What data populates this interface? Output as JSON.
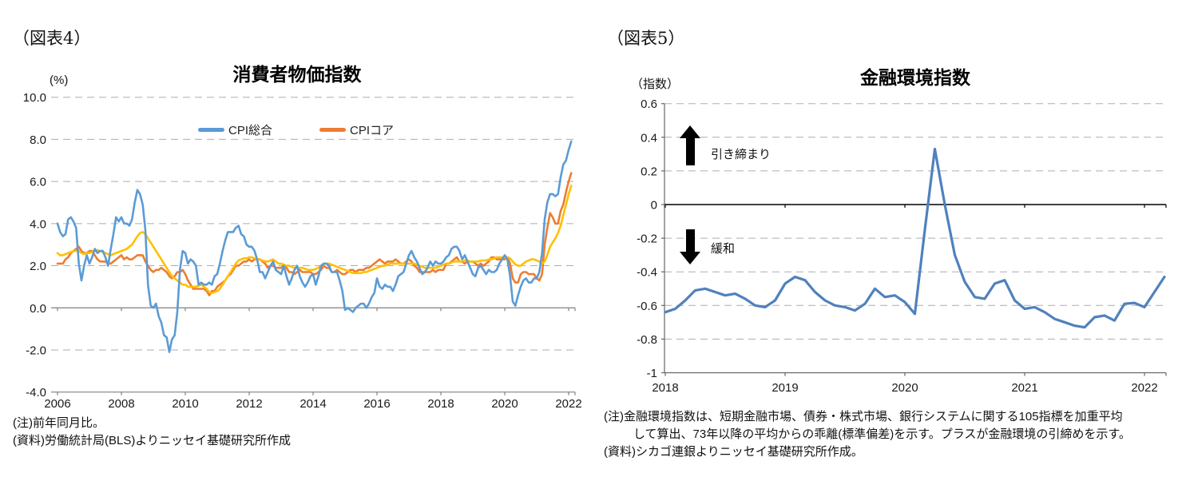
{
  "figures": [
    {
      "fig_label": "（図表4）",
      "title": "消費者物価指数",
      "axis_unit": "(%)",
      "legend": [
        {
          "label": "CPI総合",
          "color": "#5B9BD5"
        },
        {
          "label": "CPIコア",
          "color": "#ED7D31"
        }
      ],
      "notes": [
        "(注)前年同月比。",
        "(資料)労働統計局(BLS)よりニッセイ基礎研究所作成"
      ]
    },
    {
      "fig_label": "（図表5）",
      "title": "金融環境指数",
      "axis_unit": "（指数）",
      "annotations": {
        "tighten": "引き締まり",
        "ease": "緩和"
      },
      "notes": [
        "(注)金融環境指数は、短期金融市場、債券・株式市場、銀行システムに関する105指標を加重平均",
        "して算出、73年以降の平均からの乖離(標準偏差)を示す。プラスが金融環境の引締めを示す。",
        "(資料)シカゴ連銀よりニッセイ基礎研究所作成。"
      ]
    }
  ],
  "chart_data": [
    {
      "type": "line",
      "title": "消費者物価指数",
      "ylabel": "(%)",
      "ylim": [
        -4,
        10
      ],
      "grid": true,
      "legend_position": "top-center",
      "yticks": [
        "10.0",
        "8.0",
        "6.0",
        "4.0",
        "2.0",
        "0.0",
        "-2.0",
        "-4.0"
      ],
      "xticks": [
        2006,
        2008,
        2010,
        2012,
        2014,
        2016,
        2018,
        2020,
        2022
      ],
      "x_start_year": 2006,
      "x_step": "monthly",
      "x_end": "2022-02",
      "series": [
        {
          "name": "CPIコア",
          "color": "#ED7D31",
          "in_legend": true,
          "values": [
            2.1,
            2.1,
            2.1,
            2.3,
            2.4,
            2.6,
            2.7,
            2.8,
            2.9,
            2.7,
            2.6,
            2.6,
            2.7,
            2.7,
            2.5,
            2.3,
            2.2,
            2.2,
            2.2,
            2.1,
            2.1,
            2.2,
            2.3,
            2.4,
            2.5,
            2.3,
            2.4,
            2.3,
            2.3,
            2.4,
            2.5,
            2.5,
            2.5,
            2.2,
            2.0,
            1.8,
            1.7,
            1.8,
            1.8,
            1.9,
            1.8,
            1.7,
            1.5,
            1.4,
            1.5,
            1.7,
            1.7,
            1.8,
            1.6,
            1.3,
            1.1,
            0.9,
            0.9,
            0.9,
            0.9,
            0.9,
            0.8,
            0.6,
            0.8,
            0.8,
            1.0,
            1.1,
            1.2,
            1.3,
            1.5,
            1.6,
            1.8,
            2.0,
            2.0,
            2.1,
            2.2,
            2.2,
            2.3,
            2.2,
            2.3,
            2.3,
            2.3,
            2.2,
            2.1,
            1.9,
            2.0,
            2.0,
            1.9,
            1.9,
            1.9,
            2.0,
            1.9,
            1.7,
            1.7,
            1.6,
            1.7,
            1.8,
            1.7,
            1.7,
            1.7,
            1.7,
            1.6,
            1.6,
            1.7,
            1.8,
            2.0,
            1.9,
            1.9,
            1.7,
            1.7,
            1.8,
            1.7,
            1.6,
            1.6,
            1.7,
            1.8,
            1.8,
            1.7,
            1.8,
            1.8,
            1.8,
            1.9,
            1.9,
            2.0,
            2.1,
            2.2,
            2.3,
            2.2,
            2.1,
            2.2,
            2.2,
            2.2,
            2.3,
            2.2,
            2.1,
            2.1,
            2.2,
            2.3,
            2.2,
            2.0,
            1.9,
            1.7,
            1.7,
            1.7,
            1.7,
            1.7,
            1.8,
            1.7,
            1.8,
            1.8,
            1.8,
            2.1,
            2.1,
            2.2,
            2.3,
            2.4,
            2.2,
            2.2,
            2.1,
            2.2,
            2.2,
            2.2,
            2.1,
            2.0,
            2.1,
            2.0,
            2.1,
            2.2,
            2.4,
            2.4,
            2.3,
            2.3,
            2.3,
            2.3,
            2.4,
            2.1,
            1.4,
            1.2,
            1.2,
            1.6,
            1.7,
            1.7,
            1.6,
            1.6,
            1.6,
            1.4,
            1.3,
            1.6,
            3.0,
            3.8,
            4.5,
            4.3,
            4.0,
            4.0,
            4.6,
            4.9,
            5.5,
            6.0,
            6.4
          ]
        },
        {
          "name": "",
          "color": "#FFC000",
          "in_legend": false,
          "values": [
            2.6,
            2.5,
            2.5,
            2.55,
            2.6,
            2.65,
            2.7,
            2.7,
            2.7,
            2.6,
            2.55,
            2.6,
            2.6,
            2.65,
            2.7,
            2.75,
            2.7,
            2.65,
            2.6,
            2.55,
            2.5,
            2.55,
            2.6,
            2.65,
            2.7,
            2.75,
            2.8,
            2.9,
            3.0,
            3.2,
            3.4,
            3.55,
            3.6,
            3.5,
            3.3,
            3.1,
            2.9,
            2.7,
            2.5,
            2.3,
            2.1,
            1.9,
            1.7,
            1.5,
            1.4,
            1.3,
            1.2,
            1.1,
            1.1,
            1.0,
            1.0,
            1.0,
            1.0,
            1.05,
            1.1,
            1.0,
            0.9,
            0.75,
            0.7,
            0.75,
            0.8,
            0.9,
            1.1,
            1.3,
            1.5,
            1.7,
            1.9,
            2.1,
            2.25,
            2.3,
            2.35,
            2.35,
            2.4,
            2.4,
            2.35,
            2.3,
            2.3,
            2.25,
            2.2,
            2.2,
            2.25,
            2.3,
            2.2,
            2.1,
            2.1,
            2.05,
            2.0,
            2.0,
            1.95,
            1.9,
            1.9,
            1.9,
            1.9,
            1.85,
            1.8,
            1.8,
            1.8,
            1.85,
            1.9,
            2.0,
            2.1,
            2.1,
            2.1,
            2.05,
            2.0,
            1.95,
            1.9,
            1.85,
            1.8,
            1.75,
            1.7,
            1.65,
            1.65,
            1.65,
            1.65,
            1.7,
            1.7,
            1.75,
            1.8,
            1.85,
            1.9,
            1.95,
            2.0,
            2.0,
            2.05,
            2.1,
            2.1,
            2.1,
            2.1,
            2.1,
            2.1,
            2.1,
            2.1,
            2.1,
            2.1,
            2.05,
            2.0,
            1.95,
            1.9,
            1.9,
            1.9,
            1.9,
            1.9,
            1.95,
            2.0,
            2.05,
            2.1,
            2.1,
            2.15,
            2.2,
            2.2,
            2.2,
            2.2,
            2.25,
            2.25,
            2.2,
            2.2,
            2.2,
            2.2,
            2.25,
            2.25,
            2.25,
            2.3,
            2.3,
            2.35,
            2.4,
            2.4,
            2.4,
            2.4,
            2.4,
            2.35,
            2.2,
            2.05,
            2.0,
            2.0,
            2.1,
            2.2,
            2.25,
            2.3,
            2.3,
            2.25,
            2.2,
            2.1,
            2.2,
            2.5,
            2.9,
            3.1,
            3.3,
            3.55,
            3.9,
            4.4,
            4.9,
            5.4,
            5.8
          ]
        },
        {
          "name": "CPI総合",
          "color": "#5B9BD5",
          "in_legend": true,
          "values": [
            4.0,
            3.6,
            3.4,
            3.5,
            4.2,
            4.3,
            4.1,
            3.8,
            2.1,
            1.3,
            2.0,
            2.5,
            2.1,
            2.4,
            2.8,
            2.6,
            2.7,
            2.7,
            2.4,
            2.0,
            2.8,
            3.5,
            4.3,
            4.1,
            4.3,
            4.0,
            4.0,
            3.9,
            4.2,
            5.0,
            5.6,
            5.4,
            4.9,
            3.7,
            1.1,
            0.1,
            0.0,
            0.2,
            -0.4,
            -0.7,
            -1.3,
            -1.4,
            -2.1,
            -1.5,
            -1.3,
            -0.2,
            1.8,
            2.7,
            2.6,
            2.1,
            2.3,
            2.2,
            2.0,
            1.1,
            1.2,
            1.1,
            1.1,
            1.2,
            1.1,
            1.5,
            1.6,
            2.1,
            2.7,
            3.2,
            3.6,
            3.6,
            3.6,
            3.8,
            3.9,
            3.5,
            3.4,
            3.0,
            2.9,
            2.9,
            2.7,
            2.3,
            1.7,
            1.7,
            1.4,
            1.7,
            2.0,
            2.2,
            1.8,
            1.7,
            1.6,
            2.0,
            1.5,
            1.1,
            1.4,
            1.8,
            2.0,
            1.5,
            1.2,
            1.0,
            1.2,
            1.5,
            1.6,
            1.1,
            1.5,
            2.0,
            2.1,
            2.1,
            2.0,
            1.7,
            1.7,
            1.7,
            1.3,
            0.8,
            -0.1,
            0.0,
            -0.1,
            -0.2,
            0.0,
            0.1,
            0.2,
            0.2,
            0.0,
            0.2,
            0.5,
            0.7,
            1.4,
            1.0,
            0.9,
            1.1,
            1.0,
            1.0,
            0.8,
            1.1,
            1.5,
            1.6,
            1.7,
            2.1,
            2.5,
            2.7,
            2.4,
            2.2,
            1.9,
            1.6,
            1.7,
            1.9,
            2.2,
            2.0,
            2.2,
            2.1,
            2.1,
            2.2,
            2.4,
            2.5,
            2.8,
            2.9,
            2.9,
            2.7,
            2.3,
            2.5,
            2.2,
            1.9,
            1.6,
            1.5,
            1.9,
            2.0,
            1.8,
            1.6,
            1.8,
            1.7,
            1.7,
            1.8,
            2.1,
            2.3,
            2.5,
            2.3,
            1.5,
            0.3,
            0.1,
            0.6,
            1.0,
            1.3,
            1.4,
            1.2,
            1.2,
            1.4,
            1.4,
            1.7,
            2.6,
            4.2,
            5.0,
            5.4,
            5.4,
            5.3,
            5.4,
            6.2,
            6.8,
            7.0,
            7.5,
            7.9
          ]
        }
      ]
    },
    {
      "type": "line",
      "title": "金融環境指数",
      "ylabel": "（指数）",
      "ylim": [
        -1,
        0.6
      ],
      "grid": true,
      "yticks": [
        "0.6",
        "0.4",
        "0.2",
        "0",
        "-0.2",
        "-0.4",
        "-0.6",
        "-0.8",
        "-1"
      ],
      "xticks": [
        2018,
        2019,
        2020,
        2021,
        2022
      ],
      "x_start_year": 2018,
      "x_step": "monthly",
      "x_end": "2022-03",
      "annotations": [
        {
          "text": "引き締まり",
          "meaning": "tightening",
          "arrow": "up"
        },
        {
          "text": "緩和",
          "meaning": "easing",
          "arrow": "down"
        }
      ],
      "series": [
        {
          "name": "金融環境指数",
          "color": "#4F81BD",
          "in_legend": false,
          "values": [
            -0.64,
            -0.62,
            -0.57,
            -0.51,
            -0.5,
            -0.52,
            -0.54,
            -0.53,
            -0.56,
            -0.6,
            -0.61,
            -0.57,
            -0.47,
            -0.43,
            -0.45,
            -0.52,
            -0.57,
            -0.6,
            -0.61,
            -0.63,
            -0.59,
            -0.5,
            -0.55,
            -0.54,
            -0.58,
            -0.65,
            -0.15,
            0.33,
            0.0,
            -0.3,
            -0.46,
            -0.55,
            -0.56,
            -0.47,
            -0.45,
            -0.57,
            -0.62,
            -0.61,
            -0.64,
            -0.68,
            -0.7,
            -0.72,
            -0.73,
            -0.67,
            -0.66,
            -0.69,
            -0.59,
            -0.585,
            -0.61,
            -0.52,
            -0.43
          ]
        }
      ]
    }
  ]
}
